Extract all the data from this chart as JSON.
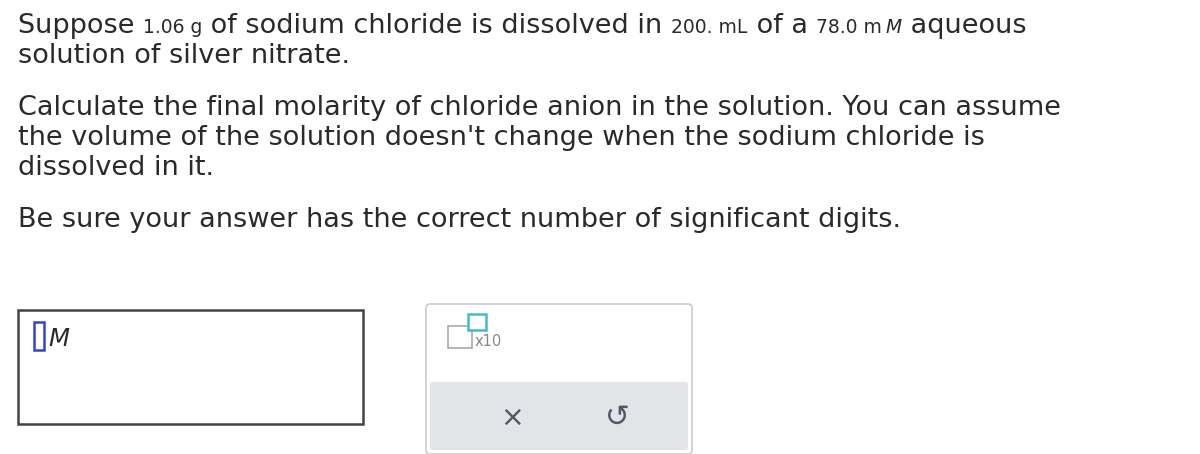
{
  "bg_color": "#ffffff",
  "text_color": "#2a2a2a",
  "main_font_size": 19.5,
  "small_font_size": 13.5,
  "line_segments": [
    {
      "text": "Suppose ",
      "small": false,
      "italic": false
    },
    {
      "text": "1.06 g",
      "small": true,
      "italic": false
    },
    {
      "text": " of sodium chloride is dissolved in ",
      "small": false,
      "italic": false
    },
    {
      "text": "200. mL",
      "small": true,
      "italic": false
    },
    {
      "text": " of a ",
      "small": false,
      "italic": false
    },
    {
      "text": "78.0 m ",
      "small": true,
      "italic": false
    },
    {
      "text": "M",
      "small": true,
      "italic": true
    },
    {
      "text": " aqueous",
      "small": false,
      "italic": false
    }
  ],
  "line2": "solution of silver nitrate.",
  "para2_line1": "Calculate the final molarity of chloride anion in the solution. You can assume",
  "para2_line2": "the volume of the solution doesn't change when the sodium chloride is",
  "para2_line3": "dissolved in it.",
  "para3": "Be sure your answer has the correct number of significant digits.",
  "cursor_color": "#3344cc",
  "teal_color": "#44bbcc",
  "gray_text": "#888888",
  "box_border": "#444444",
  "right_box_border": "#cccccc",
  "bottom_bar_color": "#e2e4e8",
  "button_color": "#555566"
}
